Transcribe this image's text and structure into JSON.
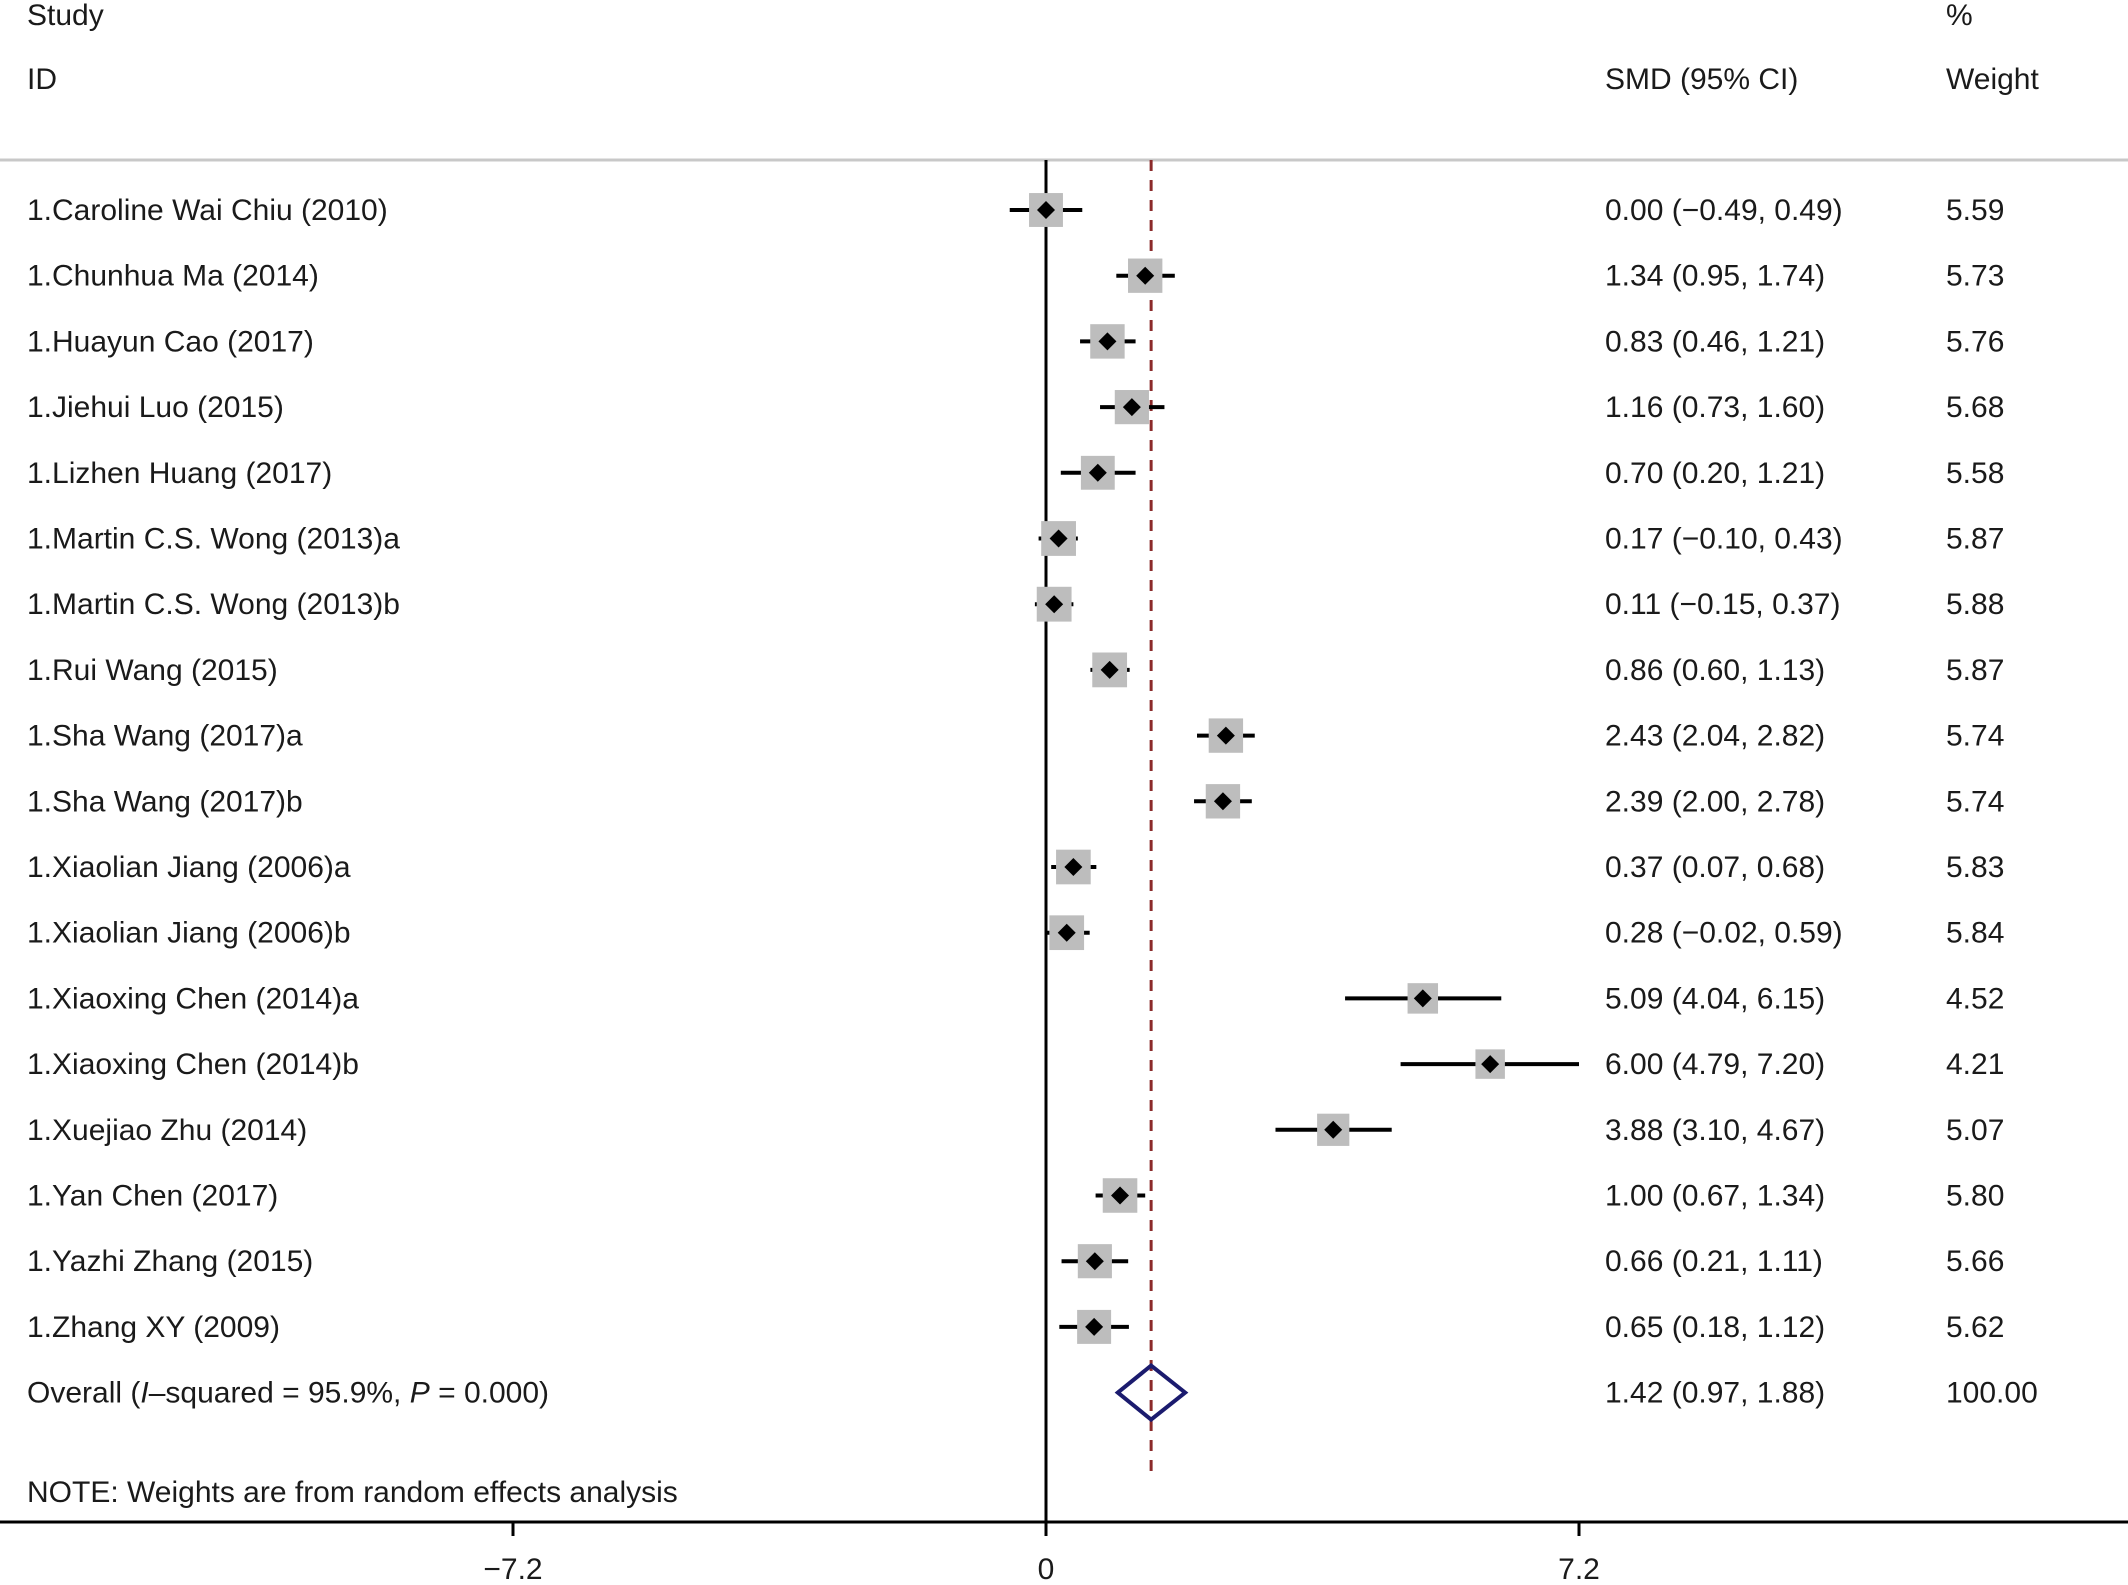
{
  "header": {
    "study_line1": "Study",
    "study_line2": "ID",
    "effect_label": "SMD (95% CI)",
    "weight_line1": "%",
    "weight_line2": "Weight"
  },
  "note": "NOTE: Weights are from random effects analysis",
  "chart_data": {
    "type": "forest",
    "measure": "SMD (95% CI)",
    "xlim": [
      -7.2,
      7.2
    ],
    "xticks": [
      -7.2,
      0,
      7.2
    ],
    "xtick_labels": [
      "−7.2",
      "0",
      "7.2"
    ],
    "null_line": 0,
    "pooled_line": 1.42,
    "studies": [
      {
        "label": "1.Caroline Wai Chiu (2010)",
        "est": 0.0,
        "lo": -0.49,
        "hi": 0.49,
        "ci_text": "0.00 (−0.49, 0.49)",
        "weight": "5.59"
      },
      {
        "label": "1.Chunhua Ma (2014)",
        "est": 1.34,
        "lo": 0.95,
        "hi": 1.74,
        "ci_text": "1.34 (0.95, 1.74)",
        "weight": "5.73"
      },
      {
        "label": "1.Huayun Cao (2017)",
        "est": 0.83,
        "lo": 0.46,
        "hi": 1.21,
        "ci_text": "0.83 (0.46, 1.21)",
        "weight": "5.76"
      },
      {
        "label": "1.Jiehui Luo (2015)",
        "est": 1.16,
        "lo": 0.73,
        "hi": 1.6,
        "ci_text": "1.16 (0.73, 1.60)",
        "weight": "5.68"
      },
      {
        "label": "1.Lizhen Huang (2017)",
        "est": 0.7,
        "lo": 0.2,
        "hi": 1.21,
        "ci_text": "0.70 (0.20, 1.21)",
        "weight": "5.58"
      },
      {
        "label": "1.Martin C.S. Wong (2013)a",
        "est": 0.17,
        "lo": -0.1,
        "hi": 0.43,
        "ci_text": "0.17 (−0.10, 0.43)",
        "weight": "5.87"
      },
      {
        "label": "1.Martin C.S. Wong (2013)b",
        "est": 0.11,
        "lo": -0.15,
        "hi": 0.37,
        "ci_text": "0.11 (−0.15, 0.37)",
        "weight": "5.88"
      },
      {
        "label": "1.Rui Wang (2015)",
        "est": 0.86,
        "lo": 0.6,
        "hi": 1.13,
        "ci_text": "0.86 (0.60, 1.13)",
        "weight": "5.87"
      },
      {
        "label": "1.Sha Wang (2017)a",
        "est": 2.43,
        "lo": 2.04,
        "hi": 2.82,
        "ci_text": "2.43 (2.04, 2.82)",
        "weight": "5.74"
      },
      {
        "label": "1.Sha Wang (2017)b",
        "est": 2.39,
        "lo": 2.0,
        "hi": 2.78,
        "ci_text": "2.39 (2.00, 2.78)",
        "weight": "5.74"
      },
      {
        "label": "1.Xiaolian Jiang (2006)a",
        "est": 0.37,
        "lo": 0.07,
        "hi": 0.68,
        "ci_text": "0.37 (0.07, 0.68)",
        "weight": "5.83"
      },
      {
        "label": "1.Xiaolian Jiang (2006)b",
        "est": 0.28,
        "lo": -0.02,
        "hi": 0.59,
        "ci_text": "0.28 (−0.02, 0.59)",
        "weight": "5.84"
      },
      {
        "label": "1.Xiaoxing Chen (2014)a",
        "est": 5.09,
        "lo": 4.04,
        "hi": 6.15,
        "ci_text": "5.09 (4.04, 6.15)",
        "weight": "4.52"
      },
      {
        "label": "1.Xiaoxing Chen (2014)b",
        "est": 6.0,
        "lo": 4.79,
        "hi": 7.2,
        "ci_text": "6.00 (4.79, 7.20)",
        "weight": "4.21"
      },
      {
        "label": "1.Xuejiao Zhu (2014)",
        "est": 3.88,
        "lo": 3.1,
        "hi": 4.67,
        "ci_text": "3.88 (3.10, 4.67)",
        "weight": "5.07"
      },
      {
        "label": "1.Yan Chen (2017)",
        "est": 1.0,
        "lo": 0.67,
        "hi": 1.34,
        "ci_text": "1.00 (0.67, 1.34)",
        "weight": "5.80"
      },
      {
        "label": "1.Yazhi Zhang (2015)",
        "est": 0.66,
        "lo": 0.21,
        "hi": 1.11,
        "ci_text": "0.66 (0.21, 1.11)",
        "weight": "5.66"
      },
      {
        "label": "1.Zhang XY (2009)",
        "est": 0.65,
        "lo": 0.18,
        "hi": 1.12,
        "ci_text": "0.65 (0.18, 1.12)",
        "weight": "5.62"
      }
    ],
    "overall": {
      "label_prefix": "Overall  (",
      "label_i": "I",
      "label_mid": "–squared = 95.9%, ",
      "label_p": "P",
      "label_suffix": " = 0.000)",
      "est": 1.42,
      "lo": 0.97,
      "hi": 1.88,
      "ci_text": "1.42 (0.97, 1.88)",
      "weight": "100.00"
    },
    "colors": {
      "line": "#000000",
      "box": "#bdbdbd",
      "pooled_line": "#8b2a2a",
      "diamond": "#1b1b6e",
      "header_rule": "#c8c8c8"
    }
  }
}
